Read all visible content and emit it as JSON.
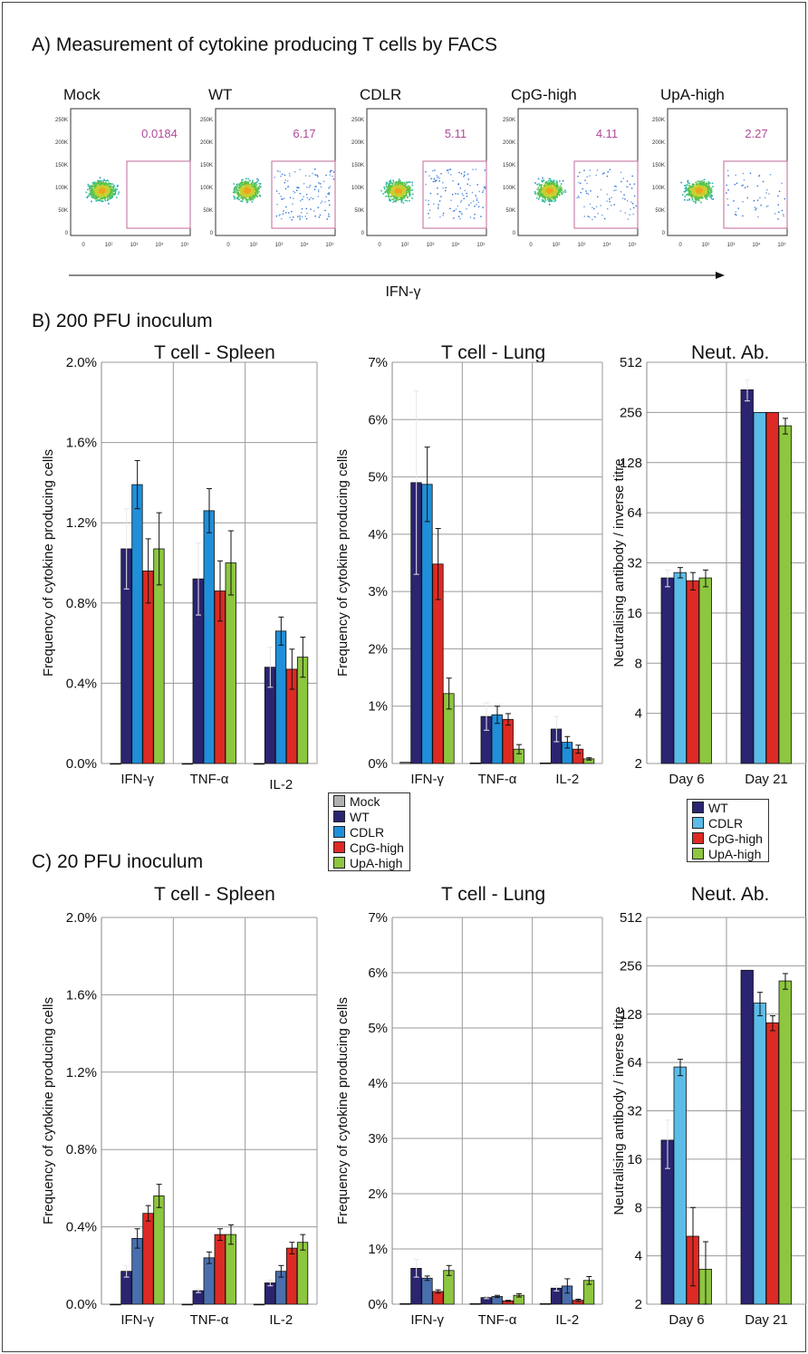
{
  "sections": {
    "a": "A) Measurement of cytokine  producing T cells by FACS",
    "b": "B) 200 PFU inoculum",
    "c": "C) 20 PFU inoculum"
  },
  "facs": {
    "axis_label": "IFN-γ",
    "y_ticks": [
      "250K",
      "200K",
      "150K",
      "100K",
      "50K",
      "0"
    ],
    "x_ticks": [
      "0",
      "10²",
      "10³",
      "10⁴",
      "10⁵"
    ],
    "panels": [
      {
        "label": "Mock",
        "value": "0.0184"
      },
      {
        "label": "WT",
        "value": "6.17"
      },
      {
        "label": "CDLR",
        "value": "5.11"
      },
      {
        "label": "CpG-high",
        "value": "4.11"
      },
      {
        "label": "UpA-high",
        "value": "2.27"
      }
    ]
  },
  "titles": {
    "spleen": "T cell - Spleen",
    "lung": "T cell - Lung",
    "neut": "Neut. Ab."
  },
  "legend_tcell": [
    "Mock",
    "WT",
    "CDLR",
    "CpG-high",
    "UpA-high"
  ],
  "legend_neut": [
    "WT",
    "CDLR",
    "CpG-high",
    "UpA-high"
  ],
  "colors": {
    "Mock": "#b0b0b0",
    "WT": "#2b2470",
    "CDLR": "#1f8fd9",
    "CDLR_C": "#4a6fae",
    "CpG-high": "#dd2a24",
    "UpA-high": "#8dc63f",
    "neut_CDLR": "#5bbce8",
    "facs_magenta": "#b04a9a",
    "grid": "#999999"
  },
  "chart_data": [
    {
      "id": "b_spleen",
      "type": "bar",
      "title": "T cell - Spleen",
      "ylabel": "Frequency of cytokine producing cells",
      "ylim": [
        0,
        2.0
      ],
      "yticks": [
        "0.0%",
        "0.4%",
        "0.8%",
        "1.2%",
        "1.6%",
        "2.0%"
      ],
      "categories": [
        "IFN-γ",
        "TNF-α",
        "IL-2"
      ],
      "series": [
        {
          "name": "Mock",
          "values": [
            0,
            0,
            0
          ],
          "errors": [
            0,
            0,
            0
          ]
        },
        {
          "name": "WT",
          "values": [
            1.07,
            0.92,
            0.48
          ],
          "errors": [
            0.2,
            0.18,
            0.1
          ]
        },
        {
          "name": "CDLR",
          "values": [
            1.39,
            1.26,
            0.66
          ],
          "errors": [
            0.12,
            0.11,
            0.07
          ]
        },
        {
          "name": "CpG-high",
          "values": [
            0.96,
            0.86,
            0.47
          ],
          "errors": [
            0.16,
            0.15,
            0.1
          ]
        },
        {
          "name": "UpA-high",
          "values": [
            1.07,
            1.0,
            0.53
          ],
          "errors": [
            0.18,
            0.16,
            0.1
          ]
        }
      ]
    },
    {
      "id": "b_lung",
      "type": "bar",
      "title": "T cell - Lung",
      "ylabel": "Frequency of cytokine producing cells",
      "ylim": [
        0,
        7
      ],
      "yticks": [
        "0%",
        "1%",
        "2%",
        "3%",
        "4%",
        "5%",
        "6%",
        "7%"
      ],
      "categories": [
        "IFN-γ",
        "TNF-α",
        "IL-2"
      ],
      "series": [
        {
          "name": "Mock",
          "values": [
            0.02,
            0.01,
            0.01
          ],
          "errors": [
            0,
            0,
            0
          ]
        },
        {
          "name": "WT",
          "values": [
            4.9,
            0.82,
            0.6
          ],
          "errors": [
            1.6,
            0.24,
            0.22
          ]
        },
        {
          "name": "CDLR",
          "values": [
            4.87,
            0.85,
            0.37
          ],
          "errors": [
            0.65,
            0.15,
            0.1
          ]
        },
        {
          "name": "CpG-high",
          "values": [
            3.48,
            0.77,
            0.25
          ],
          "errors": [
            0.62,
            0.1,
            0.07
          ]
        },
        {
          "name": "UpA-high",
          "values": [
            1.22,
            0.25,
            0.08
          ],
          "errors": [
            0.27,
            0.08,
            0.02
          ]
        }
      ]
    },
    {
      "id": "b_neut",
      "type": "bar",
      "title": "Neut. Ab.",
      "ylabel": "Neutralising antibody / inverse titre",
      "yscale": "log2",
      "ylim": [
        2,
        512
      ],
      "yticks": [
        "2",
        "4",
        "8",
        "16",
        "32",
        "64",
        "128",
        "256",
        "512"
      ],
      "categories": [
        "Day 6",
        "Day 21"
      ],
      "series": [
        {
          "name": "WT",
          "values": [
            26,
            350
          ],
          "errors": [
            3,
            50
          ]
        },
        {
          "name": "CDLR",
          "values": [
            28,
            256
          ],
          "errors": [
            2,
            0
          ]
        },
        {
          "name": "CpG-high",
          "values": [
            25,
            256
          ],
          "errors": [
            3,
            0
          ]
        },
        {
          "name": "UpA-high",
          "values": [
            26,
            213
          ],
          "errors": [
            3,
            23
          ]
        }
      ]
    },
    {
      "id": "c_spleen",
      "type": "bar",
      "title": "T cell - Spleen",
      "ylabel": "Frequency of cytokine producing cells",
      "ylim": [
        0,
        2.0
      ],
      "yticks": [
        "0.0%",
        "0.4%",
        "0.8%",
        "1.2%",
        "1.6%",
        "2.0%"
      ],
      "categories": [
        "IFN-γ",
        "TNF-α",
        "IL-2"
      ],
      "series": [
        {
          "name": "Mock",
          "values": [
            0,
            0,
            0
          ],
          "errors": [
            0,
            0,
            0
          ]
        },
        {
          "name": "WT",
          "values": [
            0.17,
            0.07,
            0.11
          ],
          "errors": [
            0.03,
            0.01,
            0.015
          ]
        },
        {
          "name": "CDLR",
          "values": [
            0.34,
            0.24,
            0.17
          ],
          "errors": [
            0.05,
            0.03,
            0.03
          ]
        },
        {
          "name": "CpG-high",
          "values": [
            0.47,
            0.36,
            0.29
          ],
          "errors": [
            0.04,
            0.03,
            0.03
          ]
        },
        {
          "name": "UpA-high",
          "values": [
            0.56,
            0.36,
            0.32
          ],
          "errors": [
            0.06,
            0.05,
            0.04
          ]
        }
      ]
    },
    {
      "id": "c_lung",
      "type": "bar",
      "title": "T cell - Lung",
      "ylabel": "Frequency of cytokine producing cells",
      "ylim": [
        0,
        7
      ],
      "yticks": [
        "0%",
        "1%",
        "2%",
        "3%",
        "4%",
        "5%",
        "6%",
        "7%"
      ],
      "categories": [
        "IFN-γ",
        "TNF-α",
        "IL-2"
      ],
      "series": [
        {
          "name": "Mock",
          "values": [
            0.01,
            0.01,
            0.01
          ],
          "errors": [
            0,
            0,
            0
          ]
        },
        {
          "name": "WT",
          "values": [
            0.65,
            0.12,
            0.29
          ],
          "errors": [
            0.16,
            0.02,
            0.05
          ]
        },
        {
          "name": "CDLR",
          "values": [
            0.47,
            0.14,
            0.33
          ],
          "errors": [
            0.04,
            0.02,
            0.13
          ]
        },
        {
          "name": "CpG-high",
          "values": [
            0.23,
            0.06,
            0.07
          ],
          "errors": [
            0.03,
            0.01,
            0.02
          ]
        },
        {
          "name": "UpA-high",
          "values": [
            0.61,
            0.16,
            0.43
          ],
          "errors": [
            0.09,
            0.03,
            0.07
          ]
        }
      ]
    },
    {
      "id": "c_neut",
      "type": "bar",
      "title": "Neut. Ab.",
      "ylabel": "Neutralising antibody / inverse titre",
      "yscale": "log2",
      "ylim": [
        2,
        512
      ],
      "yticks": [
        "2",
        "4",
        "8",
        "16",
        "32",
        "64",
        "128",
        "256",
        "512"
      ],
      "categories": [
        "Day 6",
        "Day 21"
      ],
      "series": [
        {
          "name": "WT",
          "values": [
            21,
            240
          ],
          "errors": [
            7,
            0
          ]
        },
        {
          "name": "CDLR",
          "values": [
            60,
            150
          ],
          "errors": [
            7,
            25
          ]
        },
        {
          "name": "CpG-high",
          "values": [
            5.3,
            113
          ],
          "errors": [
            2.7,
            12
          ]
        },
        {
          "name": "UpA-high",
          "values": [
            3.3,
            206
          ],
          "errors": [
            1.6,
            23
          ]
        }
      ]
    }
  ]
}
